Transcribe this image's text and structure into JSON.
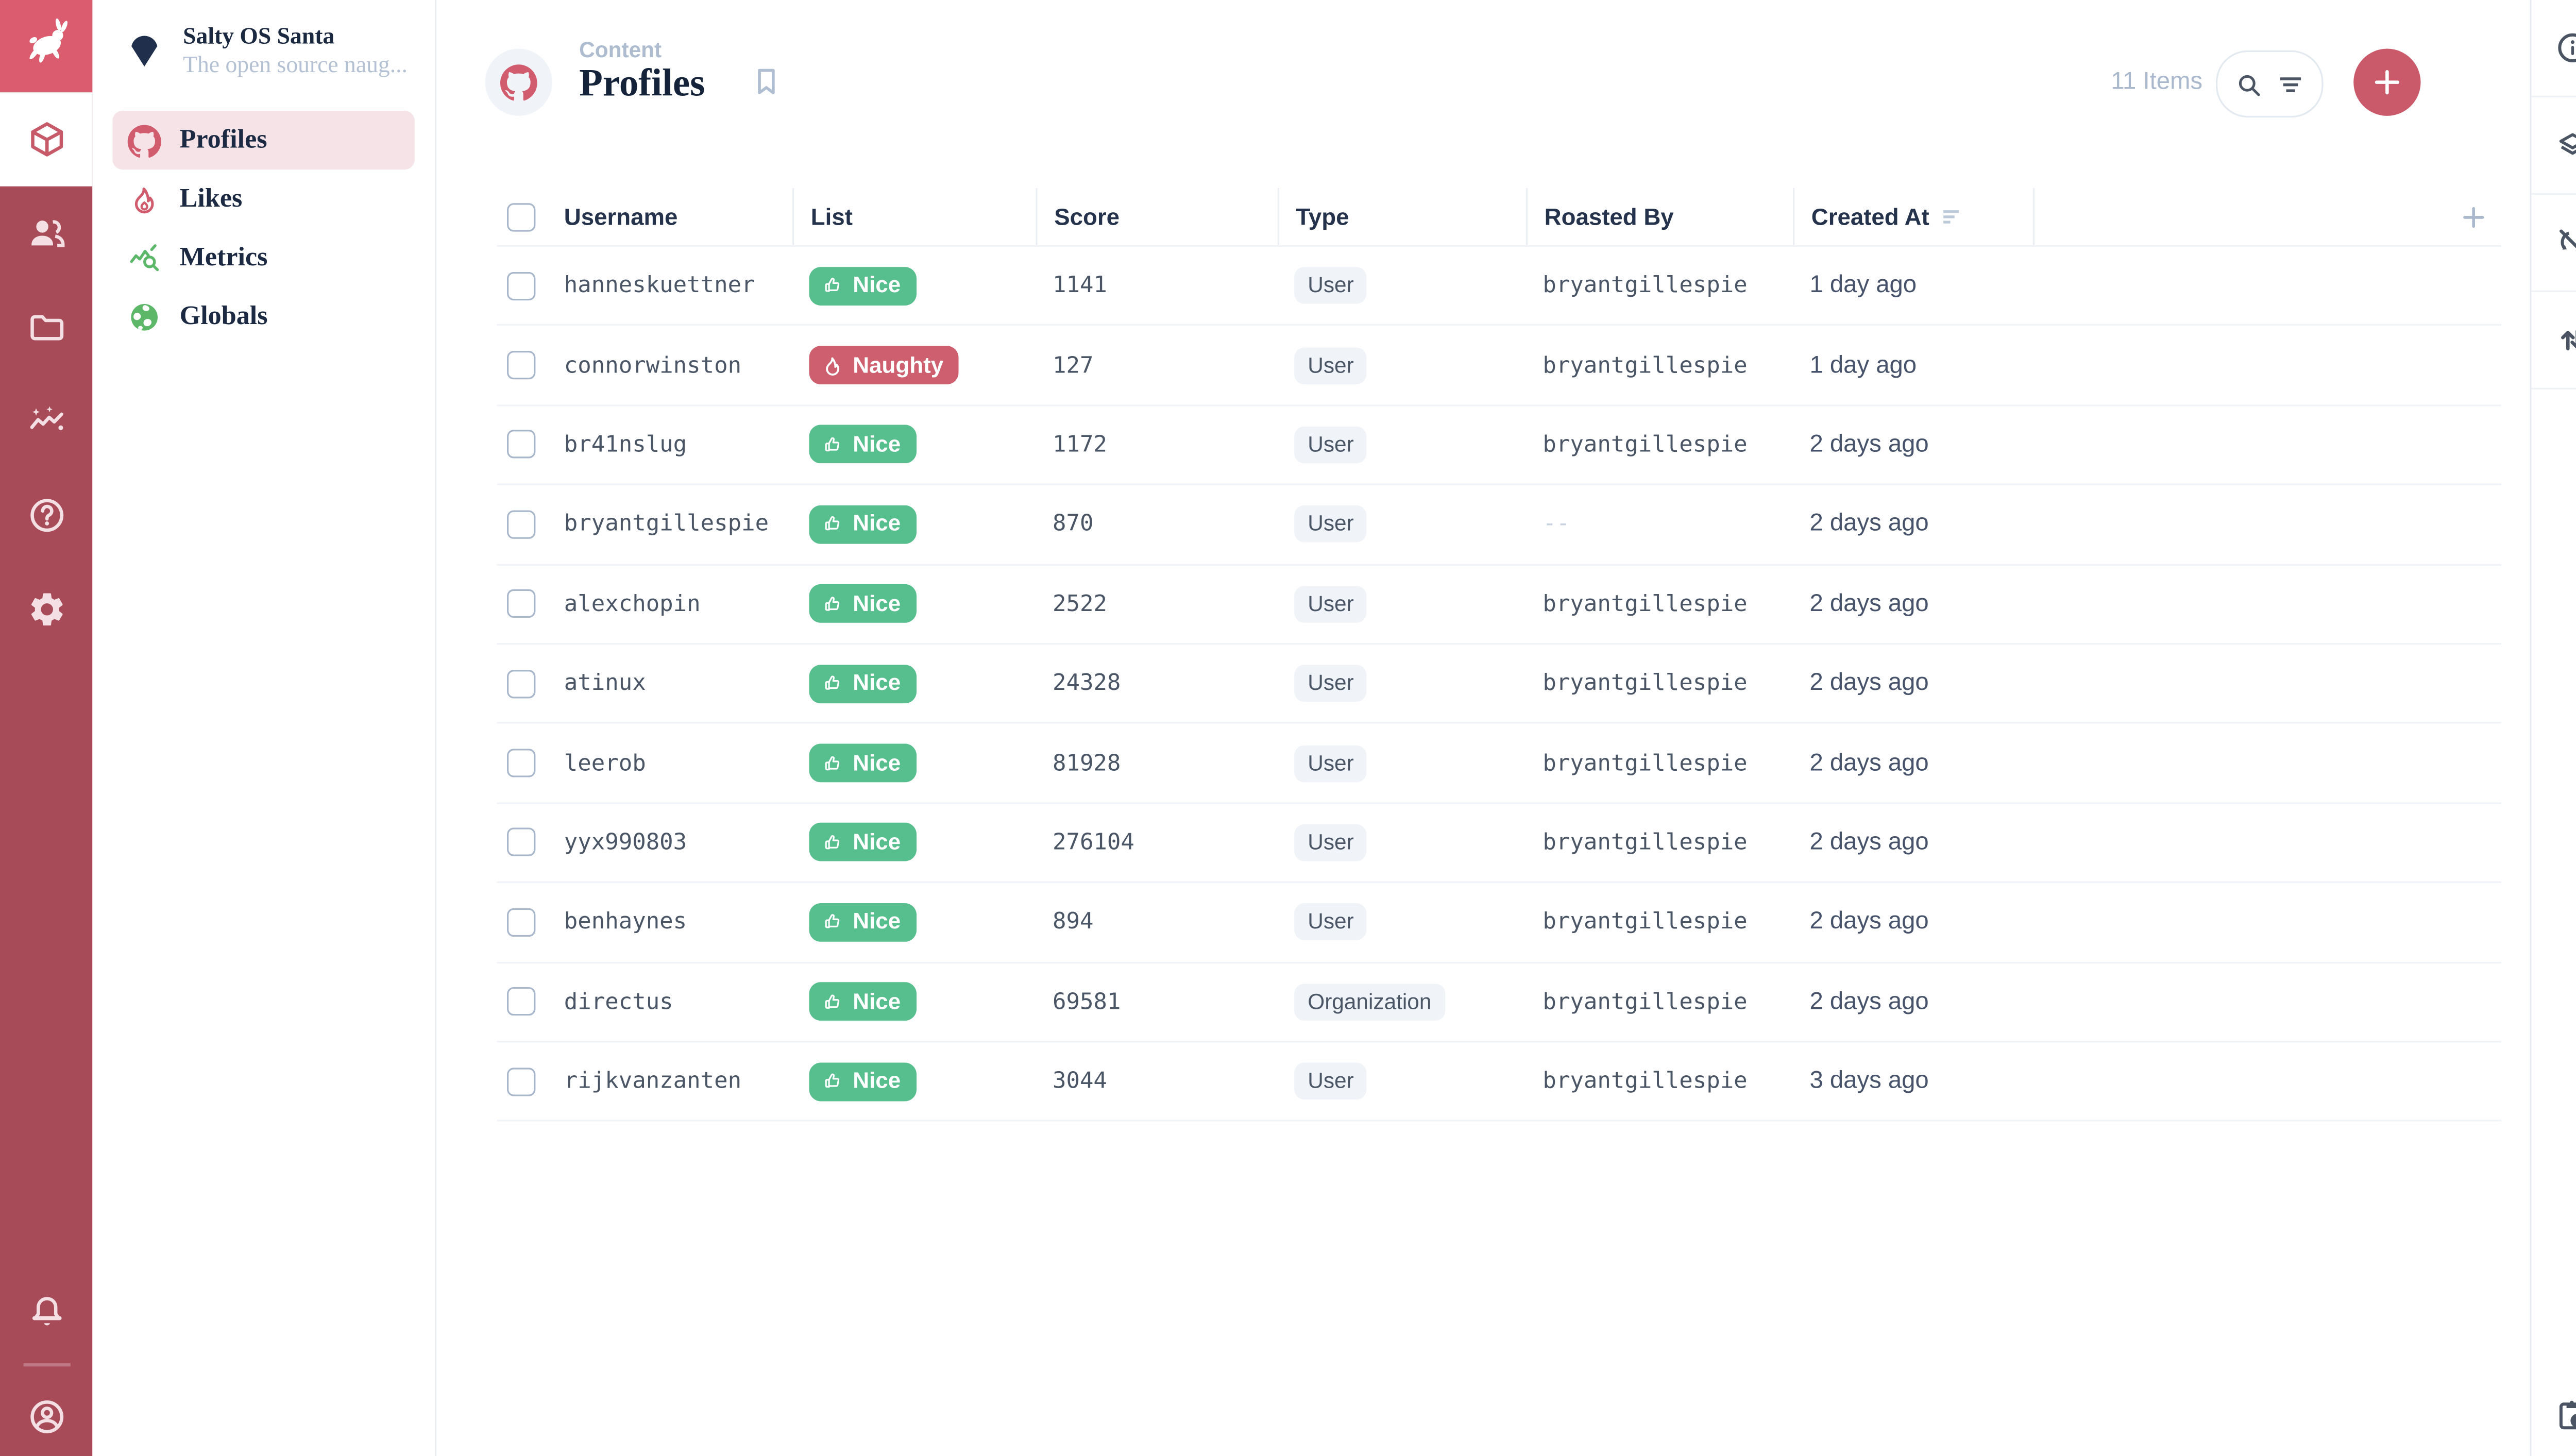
{
  "colors": {
    "rail_bg": "#A84B59",
    "logo_bg": "#DA5C6E",
    "accent_red": "#D15C6E",
    "plus_button": "#CA5A6A",
    "nice_green": "#57BE8D",
    "naughty_red": "#CE5F6F",
    "metrics_green": "#5CB769",
    "active_nav_pink": "#F6E3E8",
    "navy_text": "#15233A",
    "muted_blue_gray": "#A9B8CC"
  },
  "module_bar": {
    "logo_icon": "rabbit-logo",
    "items": [
      {
        "icon": "content-module-box",
        "active": true
      },
      {
        "icon": "users-module",
        "active": false
      },
      {
        "icon": "files-module-folder",
        "active": false
      },
      {
        "icon": "automate-module-wave",
        "active": false
      },
      {
        "icon": "help-module",
        "active": false
      },
      {
        "icon": "settings-module-gear",
        "active": false
      }
    ],
    "bottom": [
      {
        "icon": "notifications-bell"
      },
      {
        "icon": "account-circle"
      }
    ]
  },
  "project": {
    "name": "Salty OS Santa",
    "description": "The open source naug...",
    "icon": "project-diamond"
  },
  "nav": {
    "items": [
      {
        "label": "Profiles",
        "icon": "github",
        "icon_color": "#D15C6E",
        "active": true
      },
      {
        "label": "Likes",
        "icon": "flame",
        "icon_color": "#D15C6E",
        "active": false
      },
      {
        "label": "Metrics",
        "icon": "query-stats",
        "icon_color": "#5CB769",
        "active": false
      },
      {
        "label": "Globals",
        "icon": "globe",
        "icon_color": "#5CB769",
        "active": false
      }
    ]
  },
  "header": {
    "breadcrumb": "Content",
    "title": "Profiles",
    "collection_icon": "github",
    "items_count": "11 Items"
  },
  "table": {
    "columns": [
      {
        "label": "Username"
      },
      {
        "label": "List"
      },
      {
        "label": "Score"
      },
      {
        "label": "Type"
      },
      {
        "label": "Roasted By"
      },
      {
        "label": "Created At",
        "sorted": true
      }
    ],
    "badges": {
      "Nice": {
        "color": "#57BE8D",
        "icon": "thumb-up"
      },
      "Naughty": {
        "color": "#CE5F6F",
        "icon": "flame-badge"
      }
    },
    "rows": [
      {
        "username": "hanneskuettner",
        "list": "Nice",
        "score": "1141",
        "type": "User",
        "roasted_by": "bryantgillespie",
        "created_at": "1 day ago"
      },
      {
        "username": "connorwinston",
        "list": "Naughty",
        "score": "127",
        "type": "User",
        "roasted_by": "bryantgillespie",
        "created_at": "1 day ago"
      },
      {
        "username": "br41nslug",
        "list": "Nice",
        "score": "1172",
        "type": "User",
        "roasted_by": "bryantgillespie",
        "created_at": "2 days ago"
      },
      {
        "username": "bryantgillespie",
        "list": "Nice",
        "score": "870",
        "type": "User",
        "roasted_by": "--",
        "created_at": "2 days ago"
      },
      {
        "username": "alexchopin",
        "list": "Nice",
        "score": "2522",
        "type": "User",
        "roasted_by": "bryantgillespie",
        "created_at": "2 days ago"
      },
      {
        "username": "atinux",
        "list": "Nice",
        "score": "24328",
        "type": "User",
        "roasted_by": "bryantgillespie",
        "created_at": "2 days ago"
      },
      {
        "username": "leerob",
        "list": "Nice",
        "score": "81928",
        "type": "User",
        "roasted_by": "bryantgillespie",
        "created_at": "2 days ago"
      },
      {
        "username": "yyx990803",
        "list": "Nice",
        "score": "276104",
        "type": "User",
        "roasted_by": "bryantgillespie",
        "created_at": "2 days ago"
      },
      {
        "username": "benhaynes",
        "list": "Nice",
        "score": "894",
        "type": "User",
        "roasted_by": "bryantgillespie",
        "created_at": "2 days ago"
      },
      {
        "username": "directus",
        "list": "Nice",
        "score": "69581",
        "type": "Organization",
        "roasted_by": "bryantgillespie",
        "created_at": "2 days ago"
      },
      {
        "username": "rijkvanzanten",
        "list": "Nice",
        "score": "3044",
        "type": "User",
        "roasted_by": "bryantgillespie",
        "created_at": "3 days ago"
      }
    ]
  },
  "right_sidebar": {
    "top_icons": [
      "info",
      "layers",
      "sync-disabled",
      "sort-arrows"
    ],
    "bottom_icon": "clipboard-clock"
  }
}
